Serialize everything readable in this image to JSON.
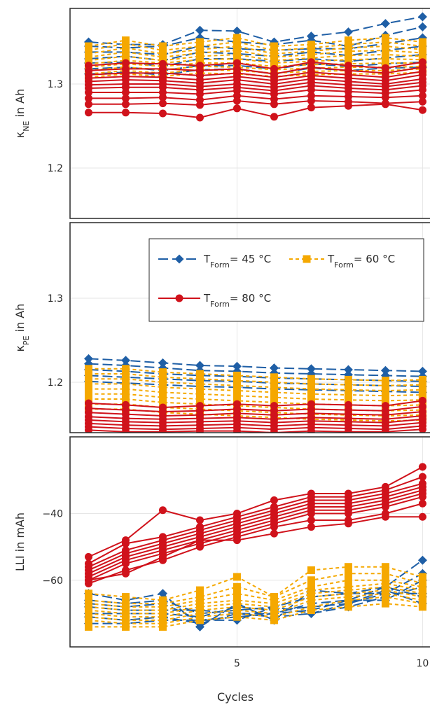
{
  "chart_data": {
    "type": "line",
    "xlabel": "Cycles",
    "x_ticks": [
      5,
      10
    ],
    "xlim": [
      0.5,
      10.2
    ],
    "grid": true,
    "legend_position": "inside-top of middle panel",
    "series_styles": [
      {
        "key": "t45",
        "legend": "T_Form= 45 °C",
        "color": "#1f5fa6",
        "dash": "14 6",
        "marker": "diamond"
      },
      {
        "key": "t60",
        "legend": "T_Form= 60 °C",
        "color": "#f5a800",
        "dash": "5 4",
        "marker": "square"
      },
      {
        "key": "t80",
        "legend": "T_Form= 80 °C",
        "color": "#d0121b",
        "dash": "",
        "marker": "circle"
      }
    ],
    "legend_parts": {
      "t45": {
        "main": "T",
        "sub": "Form",
        "rest": "= 45 °C"
      },
      "t60": {
        "main": "T",
        "sub": "Form",
        "rest": "= 60 °C"
      },
      "t80": {
        "main": "T",
        "sub": "Form",
        "rest": "= 80 °C"
      }
    },
    "panels": [
      {
        "ylabel_main": "κ",
        "ylabel_sub": "NE",
        "ylabel_rest": " in Ah",
        "ylim": [
          1.14,
          1.39
        ],
        "yticks": [
          1.2,
          1.3
        ],
        "ytick_labels": [
          "1.2",
          "1.3"
        ],
        "series": {
          "t45": [
            [
              1.35,
              1.347,
              1.347,
              1.364,
              1.363,
              1.35,
              1.357,
              1.362,
              1.372,
              1.38
            ],
            [
              1.345,
              1.343,
              1.345,
              1.355,
              1.35,
              1.347,
              1.352,
              1.345,
              1.358,
              1.368
            ],
            [
              1.338,
              1.338,
              1.335,
              1.345,
              1.342,
              1.34,
              1.342,
              1.342,
              1.348,
              1.355
            ],
            [
              1.33,
              1.333,
              1.328,
              1.338,
              1.336,
              1.333,
              1.338,
              1.334,
              1.34,
              1.345
            ],
            [
              1.325,
              1.326,
              1.321,
              1.33,
              1.33,
              1.327,
              1.33,
              1.327,
              1.331,
              1.335
            ],
            [
              1.318,
              1.32,
              1.316,
              1.322,
              1.322,
              1.318,
              1.324,
              1.321,
              1.324,
              1.326
            ],
            [
              1.312,
              1.314,
              1.311,
              1.317,
              1.318,
              1.312,
              1.319,
              1.316,
              1.319,
              1.32
            ]
          ],
          "t60": [
            [
              1.345,
              1.352,
              1.345,
              1.35,
              1.355,
              1.345,
              1.347,
              1.352,
              1.355,
              1.35
            ],
            [
              1.34,
              1.348,
              1.34,
              1.345,
              1.35,
              1.34,
              1.343,
              1.347,
              1.35,
              1.345
            ],
            [
              1.336,
              1.343,
              1.336,
              1.341,
              1.345,
              1.336,
              1.339,
              1.343,
              1.345,
              1.341
            ],
            [
              1.332,
              1.338,
              1.332,
              1.337,
              1.34,
              1.332,
              1.335,
              1.339,
              1.34,
              1.337
            ],
            [
              1.328,
              1.333,
              1.328,
              1.333,
              1.335,
              1.328,
              1.331,
              1.334,
              1.335,
              1.333
            ],
            [
              1.324,
              1.328,
              1.325,
              1.329,
              1.33,
              1.325,
              1.327,
              1.329,
              1.33,
              1.329
            ],
            [
              1.32,
              1.324,
              1.321,
              1.325,
              1.325,
              1.321,
              1.323,
              1.324,
              1.325,
              1.325
            ],
            [
              1.316,
              1.32,
              1.317,
              1.321,
              1.32,
              1.317,
              1.319,
              1.32,
              1.32,
              1.321
            ],
            [
              1.312,
              1.316,
              1.313,
              1.317,
              1.316,
              1.313,
              1.315,
              1.316,
              1.316,
              1.318
            ],
            [
              1.308,
              1.312,
              1.309,
              1.313,
              1.312,
              1.309,
              1.311,
              1.312,
              1.312,
              1.314
            ]
          ],
          "t80": [
            [
              1.322,
              1.325,
              1.324,
              1.322,
              1.325,
              1.318,
              1.326,
              1.322,
              1.319,
              1.326
            ],
            [
              1.316,
              1.318,
              1.318,
              1.316,
              1.318,
              1.312,
              1.32,
              1.316,
              1.313,
              1.32
            ],
            [
              1.311,
              1.313,
              1.313,
              1.31,
              1.313,
              1.308,
              1.314,
              1.311,
              1.308,
              1.315
            ],
            [
              1.307,
              1.309,
              1.308,
              1.305,
              1.309,
              1.304,
              1.31,
              1.307,
              1.304,
              1.311
            ],
            [
              1.303,
              1.305,
              1.304,
              1.301,
              1.305,
              1.3,
              1.306,
              1.303,
              1.3,
              1.306
            ],
            [
              1.299,
              1.3,
              1.3,
              1.297,
              1.3,
              1.296,
              1.302,
              1.299,
              1.297,
              1.302
            ],
            [
              1.295,
              1.296,
              1.296,
              1.293,
              1.296,
              1.292,
              1.298,
              1.295,
              1.293,
              1.298
            ],
            [
              1.29,
              1.29,
              1.29,
              1.288,
              1.292,
              1.288,
              1.293,
              1.291,
              1.289,
              1.293
            ],
            [
              1.283,
              1.283,
              1.284,
              1.281,
              1.286,
              1.282,
              1.286,
              1.285,
              1.284,
              1.286
            ],
            [
              1.276,
              1.276,
              1.277,
              1.275,
              1.28,
              1.276,
              1.28,
              1.279,
              1.277,
              1.279
            ],
            [
              1.266,
              1.266,
              1.265,
              1.26,
              1.271,
              1.261,
              1.272,
              1.274,
              1.276,
              1.269
            ]
          ]
        }
      },
      {
        "ylabel_main": "κ",
        "ylabel_sub": "PE",
        "ylabel_rest": " in Ah",
        "ylim": [
          1.14,
          1.39
        ],
        "yticks": [
          1.2,
          1.3
        ],
        "ytick_labels": [
          "1.2",
          "1.3"
        ],
        "series": {
          "t45": [
            [
              1.228,
              1.226,
              1.223,
              1.22,
              1.219,
              1.217,
              1.216,
              1.215,
              1.214,
              1.213
            ],
            [
              1.222,
              1.22,
              1.217,
              1.214,
              1.213,
              1.211,
              1.21,
              1.209,
              1.208,
              1.207
            ],
            [
              1.215,
              1.213,
              1.21,
              1.208,
              1.207,
              1.205,
              1.204,
              1.203,
              1.202,
              1.201
            ],
            [
              1.208,
              1.206,
              1.204,
              1.202,
              1.201,
              1.199,
              1.198,
              1.197,
              1.196,
              1.195
            ],
            [
              1.201,
              1.199,
              1.197,
              1.195,
              1.194,
              1.192,
              1.191,
              1.19,
              1.189,
              1.188
            ]
          ],
          "t60": [
            [
              1.216,
              1.216,
              1.212,
              1.21,
              1.208,
              1.206,
              1.204,
              1.203,
              1.202,
              1.203
            ],
            [
              1.21,
              1.21,
              1.206,
              1.204,
              1.202,
              1.2,
              1.198,
              1.197,
              1.196,
              1.197
            ],
            [
              1.204,
              1.204,
              1.2,
              1.198,
              1.196,
              1.194,
              1.192,
              1.191,
              1.19,
              1.191
            ],
            [
              1.198,
              1.198,
              1.194,
              1.192,
              1.19,
              1.188,
              1.186,
              1.185,
              1.184,
              1.185
            ],
            [
              1.192,
              1.192,
              1.188,
              1.186,
              1.184,
              1.182,
              1.18,
              1.179,
              1.178,
              1.179
            ],
            [
              1.186,
              1.186,
              1.182,
              1.18,
              1.178,
              1.176,
              1.174,
              1.173,
              1.172,
              1.173
            ],
            [
              1.18,
              1.18,
              1.176,
              1.174,
              1.172,
              1.17,
              1.168,
              1.167,
              1.166,
              1.167
            ],
            [
              1.174,
              1.174,
              1.17,
              1.168,
              1.166,
              1.164,
              1.162,
              1.161,
              1.16,
              1.161
            ],
            [
              1.168,
              1.168,
              1.164,
              1.162,
              1.16,
              1.158,
              1.156,
              1.155,
              1.154,
              1.155
            ]
          ],
          "t80": [
            [
              1.175,
              1.173,
              1.17,
              1.172,
              1.174,
              1.172,
              1.174,
              1.173,
              1.172,
              1.178
            ],
            [
              1.169,
              1.167,
              1.165,
              1.166,
              1.168,
              1.166,
              1.168,
              1.167,
              1.166,
              1.171
            ],
            [
              1.164,
              1.162,
              1.16,
              1.161,
              1.163,
              1.161,
              1.163,
              1.162,
              1.161,
              1.165
            ],
            [
              1.159,
              1.157,
              1.156,
              1.157,
              1.158,
              1.156,
              1.158,
              1.157,
              1.156,
              1.16
            ],
            [
              1.155,
              1.153,
              1.152,
              1.153,
              1.154,
              1.152,
              1.154,
              1.153,
              1.152,
              1.156
            ],
            [
              1.151,
              1.149,
              1.148,
              1.149,
              1.15,
              1.148,
              1.15,
              1.149,
              1.148,
              1.152
            ],
            [
              1.147,
              1.145,
              1.144,
              1.145,
              1.146,
              1.144,
              1.146,
              1.145,
              1.144,
              1.148
            ],
            [
              1.143,
              1.141,
              1.141,
              1.142,
              1.142,
              1.14,
              1.142,
              1.141,
              1.141,
              1.144
            ]
          ]
        }
      },
      {
        "ylabel_main": "LLI in mAh",
        "ylabel_sub": "",
        "ylabel_rest": "",
        "ylim": [
          -80,
          -17
        ],
        "yticks": [
          -60,
          -40
        ],
        "ytick_labels": [
          "−60",
          "−40"
        ],
        "series": {
          "t45": [
            [
              -64,
              -66,
              -64,
              -74,
              -67,
              -72,
              -63,
              -64,
              -62,
              -54
            ],
            [
              -66,
              -67,
              -66,
              -70,
              -69,
              -68,
              -65,
              -64,
              -64,
              -58
            ],
            [
              -67,
              -68,
              -67,
              -72,
              -71,
              -70,
              -67,
              -66,
              -66,
              -60
            ],
            [
              -68,
              -69,
              -69,
              -69,
              -70,
              -71,
              -70,
              -68,
              -65,
              -62
            ],
            [
              -70,
              -70,
              -70,
              -71,
              -68,
              -69,
              -68,
              -67,
              -64,
              -64
            ],
            [
              -71,
              -72,
              -71,
              -73,
              -70,
              -70,
              -69,
              -66,
              -62,
              -65
            ],
            [
              -73,
              -73,
              -72,
              -72,
              -72,
              -68,
              -70,
              -67,
              -63,
              -67
            ]
          ],
          "t60": [
            [
              -64,
              -65,
              -66,
              -63,
              -59,
              -65,
              -57,
              -56,
              -56,
              -59
            ],
            [
              -66,
              -67,
              -67,
              -65,
              -62,
              -65,
              -60,
              -58,
              -58,
              -61
            ],
            [
              -67,
              -68,
              -68,
              -66,
              -64,
              -66,
              -62,
              -60,
              -60,
              -62
            ],
            [
              -68,
              -69,
              -69,
              -67,
              -66,
              -67,
              -63,
              -62,
              -61,
              -63
            ],
            [
              -69,
              -70,
              -70,
              -68,
              -67,
              -68,
              -64,
              -63,
              -62,
              -64
            ],
            [
              -70,
              -71,
              -71,
              -69,
              -68,
              -69,
              -65,
              -64,
              -63,
              -65
            ],
            [
              -71,
              -72,
              -72,
              -70,
              -69,
              -70,
              -66,
              -65,
              -64,
              -66
            ],
            [
              -72,
              -73,
              -73,
              -71,
              -70,
              -71,
              -68,
              -66,
              -65,
              -67
            ],
            [
              -74,
              -74,
              -74,
              -72,
              -71,
              -72,
              -69,
              -68,
              -67,
              -68
            ]
          ],
          "t80": [
            [
              -53,
              -48,
              -39,
              -42,
              -40,
              -36,
              -34,
              -34,
              -32,
              -26
            ],
            [
              -55,
              -49,
              -47,
              -44,
              -41,
              -38,
              -35,
              -35,
              -33,
              -29
            ],
            [
              -56,
              -51,
              -48,
              -45,
              -42,
              -39,
              -36,
              -36,
              -34,
              -31
            ],
            [
              -57,
              -52,
              -49,
              -46,
              -43,
              -40,
              -37,
              -37,
              -35,
              -32
            ],
            [
              -58,
              -53,
              -50,
              -47,
              -44,
              -41,
              -38,
              -38,
              -36,
              -33
            ],
            [
              -59,
              -54,
              -51,
              -48,
              -45,
              -42,
              -39,
              -39,
              -37,
              -34
            ],
            [
              -60,
              -55,
              -52,
              -49,
              -46,
              -43,
              -40,
              -40,
              -38,
              -35
            ],
            [
              -61,
              -57,
              -54,
              -50,
              -47,
              -44,
              -42,
              -42,
              -40,
              -37
            ],
            [
              -60,
              -58,
              -53,
              -48,
              -48,
              -46,
              -44,
              -43,
              -41,
              -41
            ]
          ]
        }
      }
    ]
  }
}
